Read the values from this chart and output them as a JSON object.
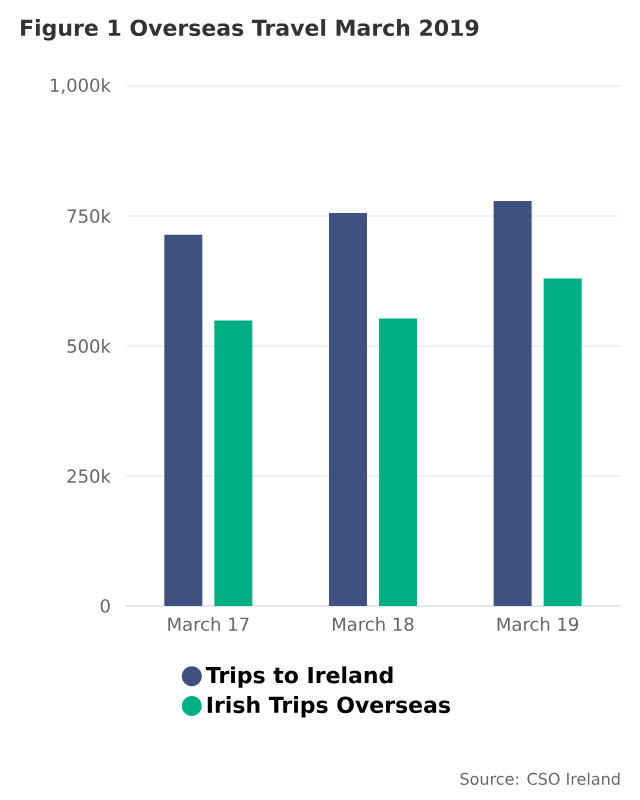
{
  "chart_data": {
    "type": "bar",
    "title": "Figure 1 Overseas Travel March 2019",
    "categories": [
      "March 17",
      "March 18",
      "March 19"
    ],
    "series": [
      {
        "name": "Trips to Ireland",
        "color": "#3f527f",
        "values": [
          714000,
          756000,
          779000
        ]
      },
      {
        "name": "Irish Trips Overseas",
        "color": "#00ae85",
        "values": [
          549000,
          553000,
          630000
        ]
      }
    ],
    "ylim": [
      0,
      1000000
    ],
    "yticks": [
      0,
      {
        "value": 250000,
        "label": "250k"
      },
      {
        "value": 500000,
        "label": "500k"
      },
      {
        "value": 750000,
        "label": "750k"
      },
      {
        "value": 1000000,
        "label": "1,000k"
      }
    ],
    "grid": "y",
    "legend": "bottom",
    "annotations": [
      "Source: CSO Ireland"
    ]
  }
}
